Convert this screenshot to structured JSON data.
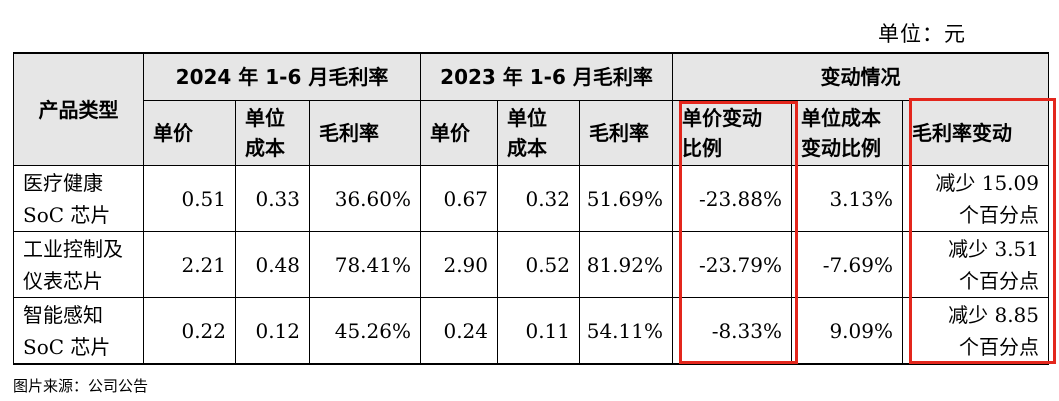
{
  "unit_label": "单位：元",
  "header": {
    "product_type": "产品类型",
    "group_2024": "2024 年 1-6 月毛利率",
    "group_2023": "2023 年 1-6 月毛利率",
    "group_change": "变动情况",
    "unit_price": "单价",
    "unit_cost": "单位\n成本",
    "gross_margin": "毛利率",
    "price_change": "单价变动\n比例",
    "cost_change": "单位成本\n变动比例",
    "margin_change": "毛利率变动"
  },
  "rows": [
    {
      "name": "医疗健康\nSoC 芯片",
      "price_2024": "0.51",
      "cost_2024": "0.33",
      "margin_2024": "36.60%",
      "price_2023": "0.67",
      "cost_2023": "0.32",
      "margin_2023": "51.69%",
      "price_change": "-23.88%",
      "cost_change": "3.13%",
      "margin_change": "减少 15.09\n个百分点"
    },
    {
      "name": "工业控制及\n仪表芯片",
      "price_2024": "2.21",
      "cost_2024": "0.48",
      "margin_2024": "78.41%",
      "price_2023": "2.90",
      "cost_2023": "0.52",
      "margin_2023": "81.92%",
      "price_change": "-23.79%",
      "cost_change": "-7.69%",
      "margin_change": "减少 3.51\n个百分点"
    },
    {
      "name": "智能感知\nSoC 芯片",
      "price_2024": "0.22",
      "cost_2024": "0.12",
      "margin_2024": "45.26%",
      "price_2023": "0.24",
      "cost_2023": "0.11",
      "margin_2023": "54.11%",
      "price_change": "-8.33%",
      "cost_change": "9.09%",
      "margin_change": "减少 8.85\n个百分点"
    }
  ],
  "source_note": "图片来源：公司公告",
  "highlight_color": "#e3261c",
  "header_bg": "#e6e6e6"
}
